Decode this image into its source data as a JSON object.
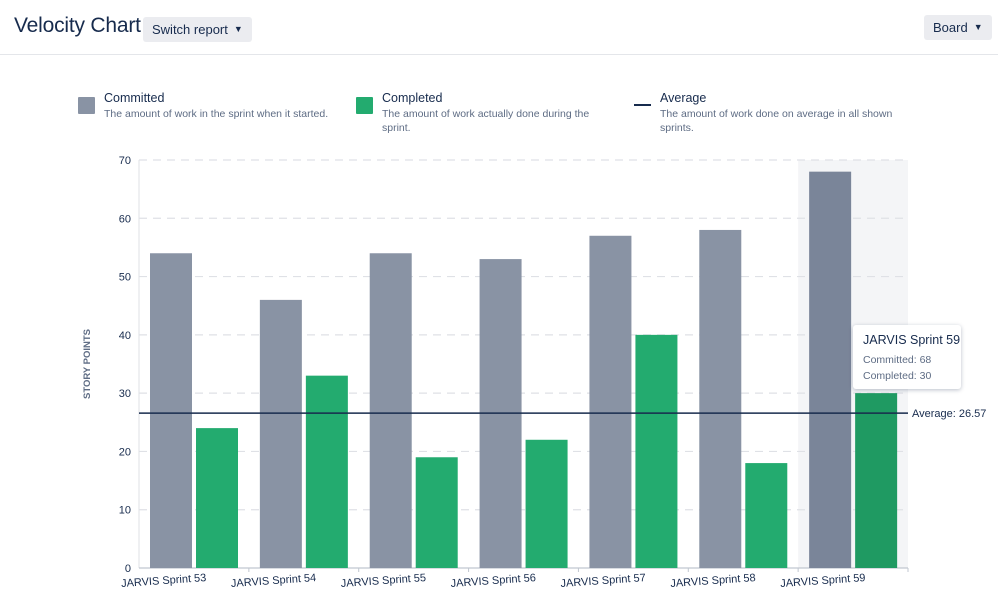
{
  "header": {
    "title": "Velocity Chart",
    "switch_report_label": "Switch report",
    "board_label": "Board"
  },
  "legend": [
    {
      "title": "Committed",
      "description": "The amount of work in the sprint when it started.",
      "color": "#8993a4",
      "kind": "swatch"
    },
    {
      "title": "Completed",
      "description": "The amount of work actually done during the sprint.",
      "color": "#23ab6f",
      "kind": "swatch"
    },
    {
      "title": "Average",
      "description": "The amount of work done on average in all shown sprints.",
      "color": "#172b4d",
      "kind": "line"
    }
  ],
  "chart_data": {
    "type": "bar",
    "categories": [
      "JARVIS Sprint 53",
      "JARVIS Sprint 54",
      "JARVIS Sprint 55",
      "JARVIS Sprint 56",
      "JARVIS Sprint 57",
      "JARVIS Sprint 58",
      "JARVIS Sprint 59"
    ],
    "series": [
      {
        "name": "Committed",
        "values": [
          54,
          46,
          54,
          53,
          57,
          58,
          68
        ],
        "color": "#8993a4",
        "highlight_color": "#7a8599"
      },
      {
        "name": "Completed",
        "values": [
          24,
          33,
          19,
          22,
          40,
          18,
          30
        ],
        "color": "#23ab6f",
        "highlight_color": "#1f9a62"
      }
    ],
    "ylabel": "STORY POINTS",
    "ylim": [
      0,
      70
    ],
    "yticks": [
      0,
      10,
      20,
      30,
      40,
      50,
      60,
      70
    ],
    "grid": "horizontal dashed",
    "average": {
      "value": 26.57,
      "label": "Average: 26.57"
    },
    "highlighted_category": "JARVIS Sprint 59"
  },
  "tooltip": {
    "title": "JARVIS Sprint 59",
    "committed": "Committed: 68",
    "completed": "Completed: 30"
  }
}
